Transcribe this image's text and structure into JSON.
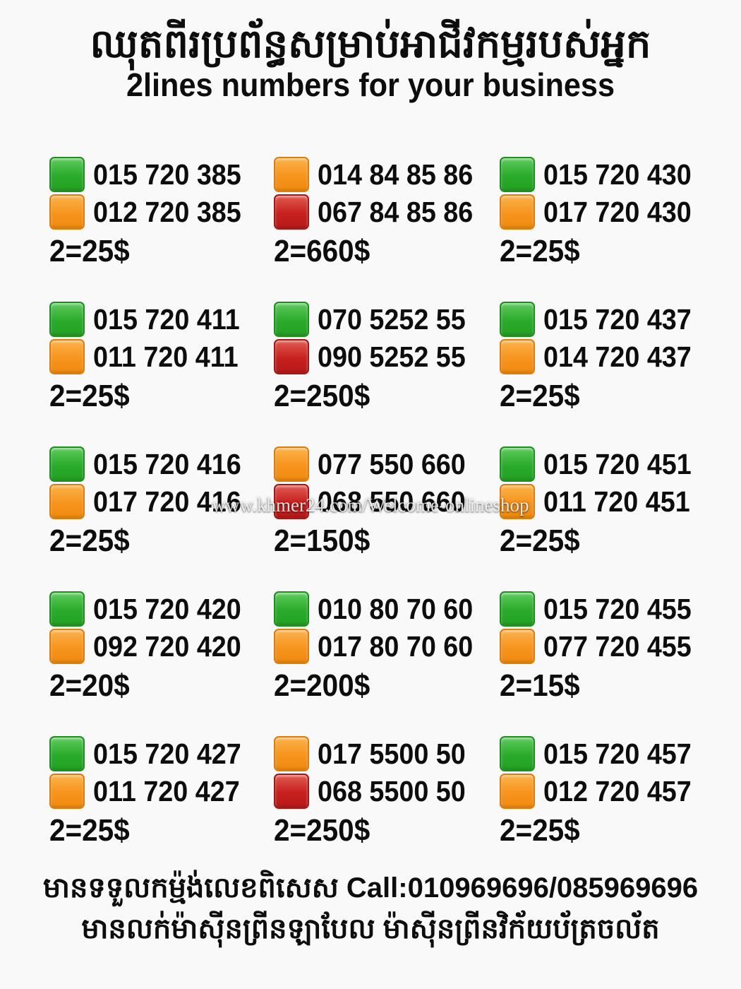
{
  "header": {
    "title_khmer": "ឈុតពីរប្រព័ន្ធសម្រាប់អាជីវកម្មរបស់អ្នក",
    "title_english": "2lines numbers for your business"
  },
  "watermark": "www.khmer24.com/Welcome-onlineshop",
  "colors": {
    "green": "#2aab2a",
    "orange": "#f7941d",
    "red": "#c7201f",
    "text": "#0d0d0d",
    "background": "#f9f9f9"
  },
  "cells": [
    {
      "lines": [
        {
          "color": "green",
          "number": "015 720 385"
        },
        {
          "color": "orange",
          "number": "012 720 385"
        }
      ],
      "price": "2=25$"
    },
    {
      "lines": [
        {
          "color": "orange",
          "number": "014 84 85 86"
        },
        {
          "color": "red",
          "number": "067 84 85 86"
        }
      ],
      "price": "2=660$"
    },
    {
      "lines": [
        {
          "color": "green",
          "number": "015 720 430"
        },
        {
          "color": "orange",
          "number": "017 720 430"
        }
      ],
      "price": "2=25$"
    },
    {
      "lines": [
        {
          "color": "green",
          "number": "015 720 411"
        },
        {
          "color": "orange",
          "number": "011 720 411"
        }
      ],
      "price": "2=25$"
    },
    {
      "lines": [
        {
          "color": "green",
          "number": "070 5252 55"
        },
        {
          "color": "red",
          "number": "090 5252 55"
        }
      ],
      "price": "2=250$"
    },
    {
      "lines": [
        {
          "color": "green",
          "number": "015 720 437"
        },
        {
          "color": "orange",
          "number": "014 720 437"
        }
      ],
      "price": "2=25$"
    },
    {
      "lines": [
        {
          "color": "green",
          "number": "015 720 416"
        },
        {
          "color": "orange",
          "number": "017 720 416"
        }
      ],
      "price": "2=25$"
    },
    {
      "lines": [
        {
          "color": "orange",
          "number": "077 550 660"
        },
        {
          "color": "red",
          "number": "068 550 660"
        }
      ],
      "price": "2=150$"
    },
    {
      "lines": [
        {
          "color": "green",
          "number": "015 720 451"
        },
        {
          "color": "orange",
          "number": "011 720 451"
        }
      ],
      "price": "2=25$"
    },
    {
      "lines": [
        {
          "color": "green",
          "number": "015 720 420"
        },
        {
          "color": "orange",
          "number": "092 720 420"
        }
      ],
      "price": "2=20$"
    },
    {
      "lines": [
        {
          "color": "green",
          "number": "010 80 70 60"
        },
        {
          "color": "orange",
          "number": "017 80 70 60"
        }
      ],
      "price": "2=200$"
    },
    {
      "lines": [
        {
          "color": "green",
          "number": "015 720 455"
        },
        {
          "color": "orange",
          "number": "077 720 455"
        }
      ],
      "price": "2=15$"
    },
    {
      "lines": [
        {
          "color": "green",
          "number": "015 720 427"
        },
        {
          "color": "orange",
          "number": "011 720 427"
        }
      ],
      "price": "2=25$"
    },
    {
      "lines": [
        {
          "color": "orange",
          "number": "017 5500 50"
        },
        {
          "color": "red",
          "number": "068 5500 50"
        }
      ],
      "price": "2=250$"
    },
    {
      "lines": [
        {
          "color": "green",
          "number": "015 720 457"
        },
        {
          "color": "orange",
          "number": "012 720 457"
        }
      ],
      "price": "2=25$"
    }
  ],
  "footer": {
    "line1": "មានទទួលកម្ម៉ង់លេខពិសេស Call:010969696/085969696",
    "line2": "មានលក់ម៉ាស៊ីនព្រីនឡាបែល ម៉ាស៊ីនព្រីនវិក័យប័ត្រចល័ត"
  }
}
